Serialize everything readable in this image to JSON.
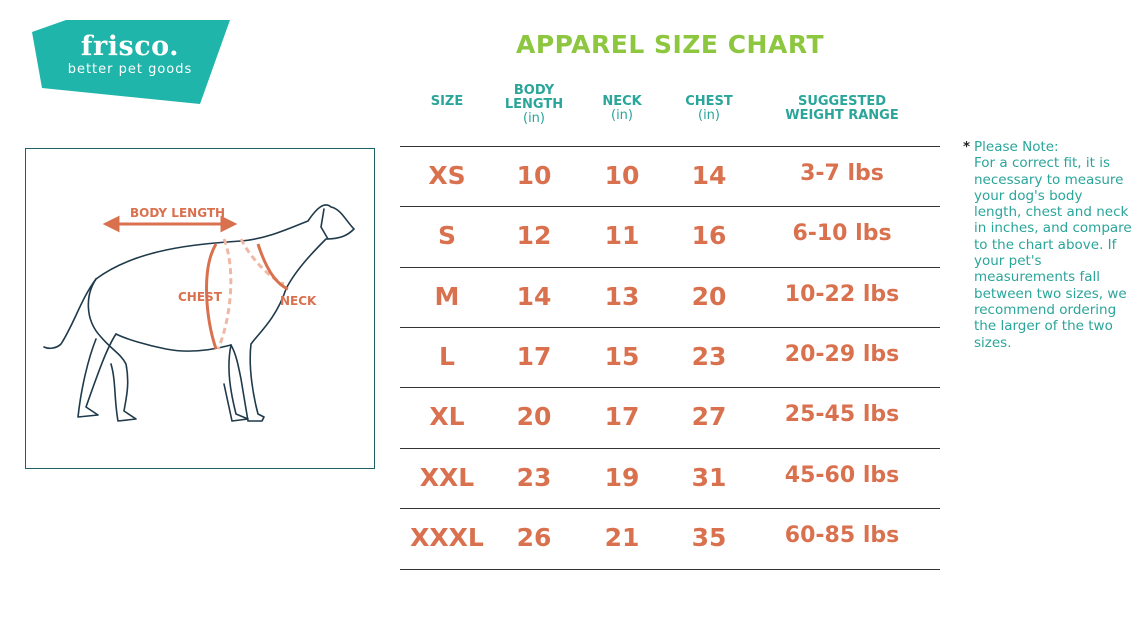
{
  "brand": {
    "name": "frisco.",
    "tagline": "better pet goods",
    "color": "#1fb5aa"
  },
  "title": "APPAREL SIZE CHART",
  "colors": {
    "title": "#8dc63f",
    "header": "#2aa59a",
    "values": "#d9714f"
  },
  "headers": [
    {
      "label": "SIZE",
      "unit": ""
    },
    {
      "label": "BODY LENGTH",
      "unit": "(in)"
    },
    {
      "label": "NECK",
      "unit": "(in)"
    },
    {
      "label": "CHEST",
      "unit": "(in)"
    },
    {
      "label": "SUGGESTED WEIGHT RANGE",
      "unit": ""
    }
  ],
  "rows": [
    [
      "XS",
      "10",
      "10",
      "14",
      "3-7 lbs"
    ],
    [
      "S",
      "12",
      "11",
      "16",
      "6-10 lbs"
    ],
    [
      "M",
      "14",
      "13",
      "20",
      "10-22 lbs"
    ],
    [
      "L",
      "17",
      "15",
      "23",
      "20-29 lbs"
    ],
    [
      "XL",
      "20",
      "17",
      "27",
      "25-45 lbs"
    ],
    [
      "XXL",
      "23",
      "19",
      "31",
      "45-60 lbs"
    ],
    [
      "XXXL",
      "26",
      "21",
      "35",
      "60-85 lbs"
    ]
  ],
  "diagram": {
    "body_length": "BODY LENGTH",
    "chest": "CHEST",
    "neck": "NECK"
  },
  "note": {
    "star": "*",
    "heading": "Please Note:",
    "text": "For a correct fit, it is necessary to measure your dog's body length, chest and neck in inches, and compare to the chart above. If your pet's measurements fall between two sizes, we recommend ordering the larger of the two sizes."
  }
}
